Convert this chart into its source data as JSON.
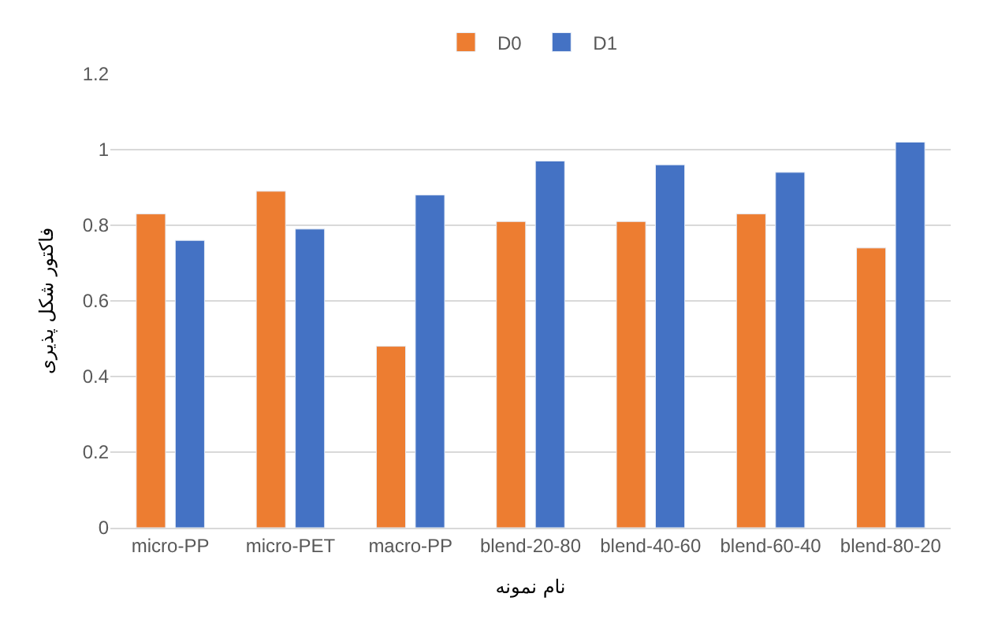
{
  "chart_data": {
    "type": "bar",
    "xlabel": "نام نمونه",
    "ylabel": "فاکتور شکل پذیری",
    "categories": [
      "micro-PP",
      "micro-PET",
      "macro-PP",
      "blend-20-80",
      "blend-40-60",
      "blend-60-40",
      "blend-80-20"
    ],
    "series": [
      {
        "name": "D0",
        "color": "#ed7d31",
        "values": [
          0.83,
          0.89,
          0.48,
          0.81,
          0.81,
          0.83,
          0.74
        ]
      },
      {
        "name": "D1",
        "color": "#4472c4",
        "values": [
          0.76,
          0.79,
          0.88,
          0.97,
          0.96,
          0.94,
          1.02
        ]
      }
    ],
    "ylim": [
      0,
      1.2
    ],
    "yticks": [
      0,
      0.2,
      0.4,
      0.6,
      0.8,
      1,
      1.2
    ],
    "grid": "y",
    "legend": "top"
  }
}
